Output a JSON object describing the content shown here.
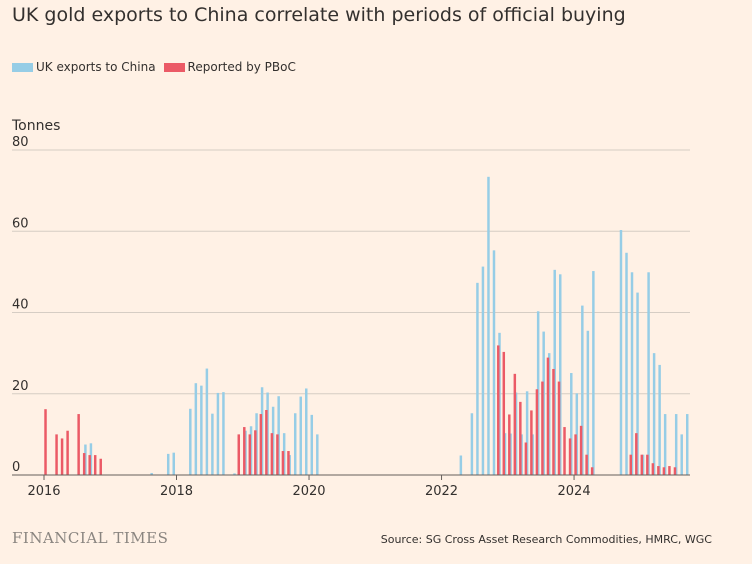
{
  "title": "UK gold exports to China correlate with periods of official buying",
  "legend": [
    {
      "label": "UK exports to China",
      "color": "#96cde6"
    },
    {
      "label": "Reported by PBoC",
      "color": "#eb5a66"
    }
  ],
  "units_label": "Tonnes",
  "brand": "FINANCIAL TIMES",
  "source": "Source: SG Cross Asset Research Commodities, HMRC, WGC",
  "chart_data": {
    "type": "bar",
    "ylim": [
      0,
      80
    ],
    "yticks": [
      0,
      20,
      40,
      60,
      80
    ],
    "xlim": [
      2016.0,
      2025.75
    ],
    "xticks": [
      2016,
      2018,
      2020,
      2022,
      2024
    ],
    "grid": true,
    "series": [
      {
        "name": "UK exports to China",
        "color": "#96cde6",
        "points": [
          {
            "date": "2016-01",
            "value": 0
          },
          {
            "date": "2016-02",
            "value": 0
          },
          {
            "date": "2016-03",
            "value": 0
          },
          {
            "date": "2016-04",
            "value": 0
          },
          {
            "date": "2016-05",
            "value": 0
          },
          {
            "date": "2016-06",
            "value": 0
          },
          {
            "date": "2016-07",
            "value": 0
          },
          {
            "date": "2016-08",
            "value": 7.5
          },
          {
            "date": "2016-09",
            "value": 7.8
          },
          {
            "date": "2016-10",
            "value": 0
          },
          {
            "date": "2016-11",
            "value": 0
          },
          {
            "date": "2016-12",
            "value": 0
          },
          {
            "date": "2017-01",
            "value": 0
          },
          {
            "date": "2017-02",
            "value": 0
          },
          {
            "date": "2017-03",
            "value": 0
          },
          {
            "date": "2017-04",
            "value": 0
          },
          {
            "date": "2017-05",
            "value": 0
          },
          {
            "date": "2017-06",
            "value": 0
          },
          {
            "date": "2017-07",
            "value": 0
          },
          {
            "date": "2017-08",
            "value": 0.5
          },
          {
            "date": "2017-09",
            "value": 0
          },
          {
            "date": "2017-10",
            "value": 0
          },
          {
            "date": "2017-11",
            "value": 5.2
          },
          {
            "date": "2017-12",
            "value": 5.5
          },
          {
            "date": "2018-01",
            "value": 0
          },
          {
            "date": "2018-02",
            "value": 0
          },
          {
            "date": "2018-03",
            "value": 16.3
          },
          {
            "date": "2018-04",
            "value": 22.6
          },
          {
            "date": "2018-05",
            "value": 22.0
          },
          {
            "date": "2018-06",
            "value": 26.2
          },
          {
            "date": "2018-07",
            "value": 15.1
          },
          {
            "date": "2018-08",
            "value": 20.2
          },
          {
            "date": "2018-09",
            "value": 20.4
          },
          {
            "date": "2018-10",
            "value": 0
          },
          {
            "date": "2018-11",
            "value": 0.4
          },
          {
            "date": "2018-12",
            "value": 0
          },
          {
            "date": "2019-01",
            "value": 10.9
          },
          {
            "date": "2019-02",
            "value": 12.0
          },
          {
            "date": "2019-03",
            "value": 15.2
          },
          {
            "date": "2019-04",
            "value": 21.6
          },
          {
            "date": "2019-05",
            "value": 20.3
          },
          {
            "date": "2019-06",
            "value": 16.8
          },
          {
            "date": "2019-07",
            "value": 19.4
          },
          {
            "date": "2019-08",
            "value": 10.3
          },
          {
            "date": "2019-09",
            "value": 4.9
          },
          {
            "date": "2019-10",
            "value": 15.2
          },
          {
            "date": "2019-11",
            "value": 19.3
          },
          {
            "date": "2019-12",
            "value": 21.3
          },
          {
            "date": "2020-01",
            "value": 14.8
          },
          {
            "date": "2020-02",
            "value": 10.0
          },
          {
            "date": "2020-03",
            "value": 0
          },
          {
            "date": "2020-04",
            "value": 0
          },
          {
            "date": "2020-05",
            "value": 0
          },
          {
            "date": "2020-06",
            "value": 0
          },
          {
            "date": "2020-07",
            "value": 0
          },
          {
            "date": "2020-08",
            "value": 0
          },
          {
            "date": "2020-09",
            "value": 0
          },
          {
            "date": "2020-10",
            "value": 0
          },
          {
            "date": "2020-11",
            "value": 0
          },
          {
            "date": "2020-12",
            "value": 0
          },
          {
            "date": "2021-01",
            "value": 0
          },
          {
            "date": "2021-02",
            "value": 0
          },
          {
            "date": "2021-03",
            "value": 0
          },
          {
            "date": "2021-04",
            "value": 0
          },
          {
            "date": "2021-05",
            "value": 0
          },
          {
            "date": "2021-06",
            "value": 0
          },
          {
            "date": "2021-07",
            "value": 0
          },
          {
            "date": "2021-08",
            "value": 0
          },
          {
            "date": "2021-09",
            "value": 0
          },
          {
            "date": "2021-10",
            "value": 0
          },
          {
            "date": "2021-11",
            "value": 0
          },
          {
            "date": "2021-12",
            "value": 0
          },
          {
            "date": "2022-01",
            "value": 0
          },
          {
            "date": "2022-02",
            "value": 0
          },
          {
            "date": "2022-03",
            "value": 0
          },
          {
            "date": "2022-04",
            "value": 4.8
          },
          {
            "date": "2022-05",
            "value": 0
          },
          {
            "date": "2022-06",
            "value": 15.2
          },
          {
            "date": "2022-07",
            "value": 47.3
          },
          {
            "date": "2022-08",
            "value": 51.3
          },
          {
            "date": "2022-09",
            "value": 73.4
          },
          {
            "date": "2022-10",
            "value": 55.3
          },
          {
            "date": "2022-11",
            "value": 35.0
          },
          {
            "date": "2022-12",
            "value": 10.3
          },
          {
            "date": "2023-01",
            "value": 10.2
          },
          {
            "date": "2023-02",
            "value": 20.3
          },
          {
            "date": "2023-03",
            "value": 10.0
          },
          {
            "date": "2023-04",
            "value": 20.6
          },
          {
            "date": "2023-05",
            "value": 10.0
          },
          {
            "date": "2023-06",
            "value": 40.3
          },
          {
            "date": "2023-07",
            "value": 35.3
          },
          {
            "date": "2023-08",
            "value": 30.0
          },
          {
            "date": "2023-09",
            "value": 50.5
          },
          {
            "date": "2023-10",
            "value": 49.4
          },
          {
            "date": "2023-11",
            "value": 0
          },
          {
            "date": "2023-12",
            "value": 25.1
          },
          {
            "date": "2024-01",
            "value": 20.1
          },
          {
            "date": "2024-02",
            "value": 41.7
          },
          {
            "date": "2024-03",
            "value": 35.5
          },
          {
            "date": "2024-04",
            "value": 50.2
          },
          {
            "date": "2024-05",
            "value": 0
          },
          {
            "date": "2024-06",
            "value": 0
          },
          {
            "date": "2024-07",
            "value": 0
          },
          {
            "date": "2024-08",
            "value": 0
          },
          {
            "date": "2024-09",
            "value": 60.3
          },
          {
            "date": "2024-10",
            "value": 54.7
          },
          {
            "date": "2024-11",
            "value": 49.9
          },
          {
            "date": "2024-12",
            "value": 44.9
          },
          {
            "date": "2025-01",
            "value": 5.0
          },
          {
            "date": "2025-02",
            "value": 49.9
          },
          {
            "date": "2025-03",
            "value": 30.0
          },
          {
            "date": "2025-04",
            "value": 27.1
          },
          {
            "date": "2025-05",
            "value": 15.0
          },
          {
            "date": "2025-06",
            "value": 0
          },
          {
            "date": "2025-07",
            "value": 15.0
          },
          {
            "date": "2025-08",
            "value": 10.0
          },
          {
            "date": "2025-09",
            "value": 15.0
          }
        ]
      },
      {
        "name": "Reported by PBoC",
        "color": "#eb5a66",
        "points": [
          {
            "date": "2016-01",
            "value": 16.2
          },
          {
            "date": "2016-02",
            "value": 0
          },
          {
            "date": "2016-03",
            "value": 10.0
          },
          {
            "date": "2016-04",
            "value": 9.0
          },
          {
            "date": "2016-05",
            "value": 10.9
          },
          {
            "date": "2016-06",
            "value": 0
          },
          {
            "date": "2016-07",
            "value": 15.0
          },
          {
            "date": "2016-08",
            "value": 5.4
          },
          {
            "date": "2016-09",
            "value": 4.9
          },
          {
            "date": "2016-10",
            "value": 4.9
          },
          {
            "date": "2016-11",
            "value": 4.0
          },
          {
            "date": "2016-12",
            "value": 0
          },
          {
            "date": "2018-12",
            "value": 10.0
          },
          {
            "date": "2019-01",
            "value": 11.8
          },
          {
            "date": "2019-02",
            "value": 10.0
          },
          {
            "date": "2019-03",
            "value": 11.0
          },
          {
            "date": "2019-04",
            "value": 15.0
          },
          {
            "date": "2019-05",
            "value": 16.0
          },
          {
            "date": "2019-06",
            "value": 10.3
          },
          {
            "date": "2019-07",
            "value": 10.0
          },
          {
            "date": "2019-08",
            "value": 5.9
          },
          {
            "date": "2019-09",
            "value": 5.9
          },
          {
            "date": "2022-11",
            "value": 31.9
          },
          {
            "date": "2022-12",
            "value": 30.3
          },
          {
            "date": "2023-01",
            "value": 14.9
          },
          {
            "date": "2023-02",
            "value": 24.9
          },
          {
            "date": "2023-03",
            "value": 18.0
          },
          {
            "date": "2023-04",
            "value": 8.0
          },
          {
            "date": "2023-05",
            "value": 15.9
          },
          {
            "date": "2023-06",
            "value": 21.1
          },
          {
            "date": "2023-07",
            "value": 23.0
          },
          {
            "date": "2023-08",
            "value": 28.9
          },
          {
            "date": "2023-09",
            "value": 26.1
          },
          {
            "date": "2023-10",
            "value": 23.0
          },
          {
            "date": "2023-11",
            "value": 11.8
          },
          {
            "date": "2023-12",
            "value": 9.0
          },
          {
            "date": "2024-01",
            "value": 10.0
          },
          {
            "date": "2024-02",
            "value": 12.1
          },
          {
            "date": "2024-03",
            "value": 5.0
          },
          {
            "date": "2024-04",
            "value": 1.9
          },
          {
            "date": "2024-11",
            "value": 5.0
          },
          {
            "date": "2024-12",
            "value": 10.3
          },
          {
            "date": "2025-01",
            "value": 5.0
          },
          {
            "date": "2025-02",
            "value": 5.0
          },
          {
            "date": "2025-03",
            "value": 2.9
          },
          {
            "date": "2025-04",
            "value": 2.2
          },
          {
            "date": "2025-05",
            "value": 1.9
          },
          {
            "date": "2025-06",
            "value": 2.2
          },
          {
            "date": "2025-07",
            "value": 1.9
          }
        ]
      }
    ]
  }
}
